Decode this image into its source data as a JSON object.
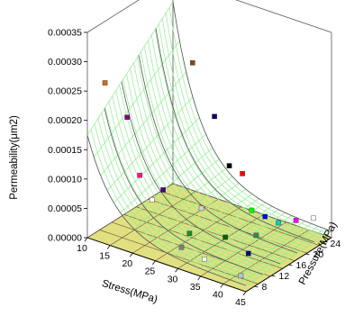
{
  "chart_data": {
    "type": "surface3d",
    "title": "",
    "x_axis": {
      "label": "Stress(MPa)",
      "ticks": [
        10,
        15,
        20,
        25,
        30,
        35,
        40,
        45
      ],
      "range": [
        10,
        45
      ]
    },
    "y_axis": {
      "label": "Pressure(MPa)",
      "ticks": [
        8,
        12,
        16,
        20,
        24
      ],
      "range": [
        6,
        26
      ]
    },
    "z_axis": {
      "label": "Permeability(μm2)",
      "ticks": [
        "0.00000",
        "0.00005",
        "0.00010",
        "0.00015",
        "0.00020",
        "0.00025",
        "0.00030",
        "0.00035"
      ],
      "range": [
        0,
        0.00035
      ]
    },
    "surfaces": [
      {
        "name": "fitted-surface",
        "style": "wireframe",
        "color": "#90ee90"
      },
      {
        "name": "floor-plane",
        "style": "filled",
        "color": "#e0e080",
        "z": 0
      }
    ],
    "points": [
      {
        "x": 12,
        "y": 8,
        "z": 0.00026,
        "color": "#d2691e"
      },
      {
        "x": 15,
        "y": 10,
        "z": 0.0002,
        "color": "#800080"
      },
      {
        "x": 14,
        "y": 14,
        "z": 8e-05,
        "color": "#ff1493"
      },
      {
        "x": 20,
        "y": 20,
        "z": 0.00026,
        "color": "#8b4513"
      },
      {
        "x": 22,
        "y": 23,
        "z": 0.00016,
        "color": "#000080"
      },
      {
        "x": 22,
        "y": 11,
        "z": 9e-05,
        "color": "#4b0082"
      },
      {
        "x": 30,
        "y": 18,
        "z": 0.00012,
        "color": "#000000"
      },
      {
        "x": 31,
        "y": 20,
        "z": 0.0001,
        "color": "#ff0000"
      },
      {
        "x": 34,
        "y": 19,
        "z": 5e-05,
        "color": "#00ff00"
      },
      {
        "x": 36,
        "y": 20,
        "z": 4e-05,
        "color": "#0000ff"
      },
      {
        "x": 38,
        "y": 21,
        "z": 3e-05,
        "color": "#00ced1"
      },
      {
        "x": 40,
        "y": 23,
        "z": 3e-05,
        "color": "#ff00ff"
      },
      {
        "x": 42,
        "y": 25,
        "z": 3e-05,
        "color": "#ffffff"
      },
      {
        "x": 12,
        "y": 19,
        "z": 1e-05,
        "color": "#ffffff"
      },
      {
        "x": 25,
        "y": 14,
        "z": 1e-05,
        "color": "#228b22"
      },
      {
        "x": 21,
        "y": 21,
        "z": 1e-05,
        "color": "#d3d3d3"
      },
      {
        "x": 27,
        "y": 10,
        "z": 1e-05,
        "color": "#808080"
      },
      {
        "x": 31,
        "y": 16,
        "z": 1e-05,
        "color": "#006400"
      },
      {
        "x": 33,
        "y": 9,
        "z": 1e-05,
        "color": "#ffffff"
      },
      {
        "x": 35,
        "y": 19,
        "z": 1e-05,
        "color": "#2e8b57"
      },
      {
        "x": 38,
        "y": 14,
        "z": 1e-05,
        "color": "#000080"
      },
      {
        "x": 42,
        "y": 8,
        "z": 1e-05,
        "color": "#b0c4de"
      }
    ]
  }
}
